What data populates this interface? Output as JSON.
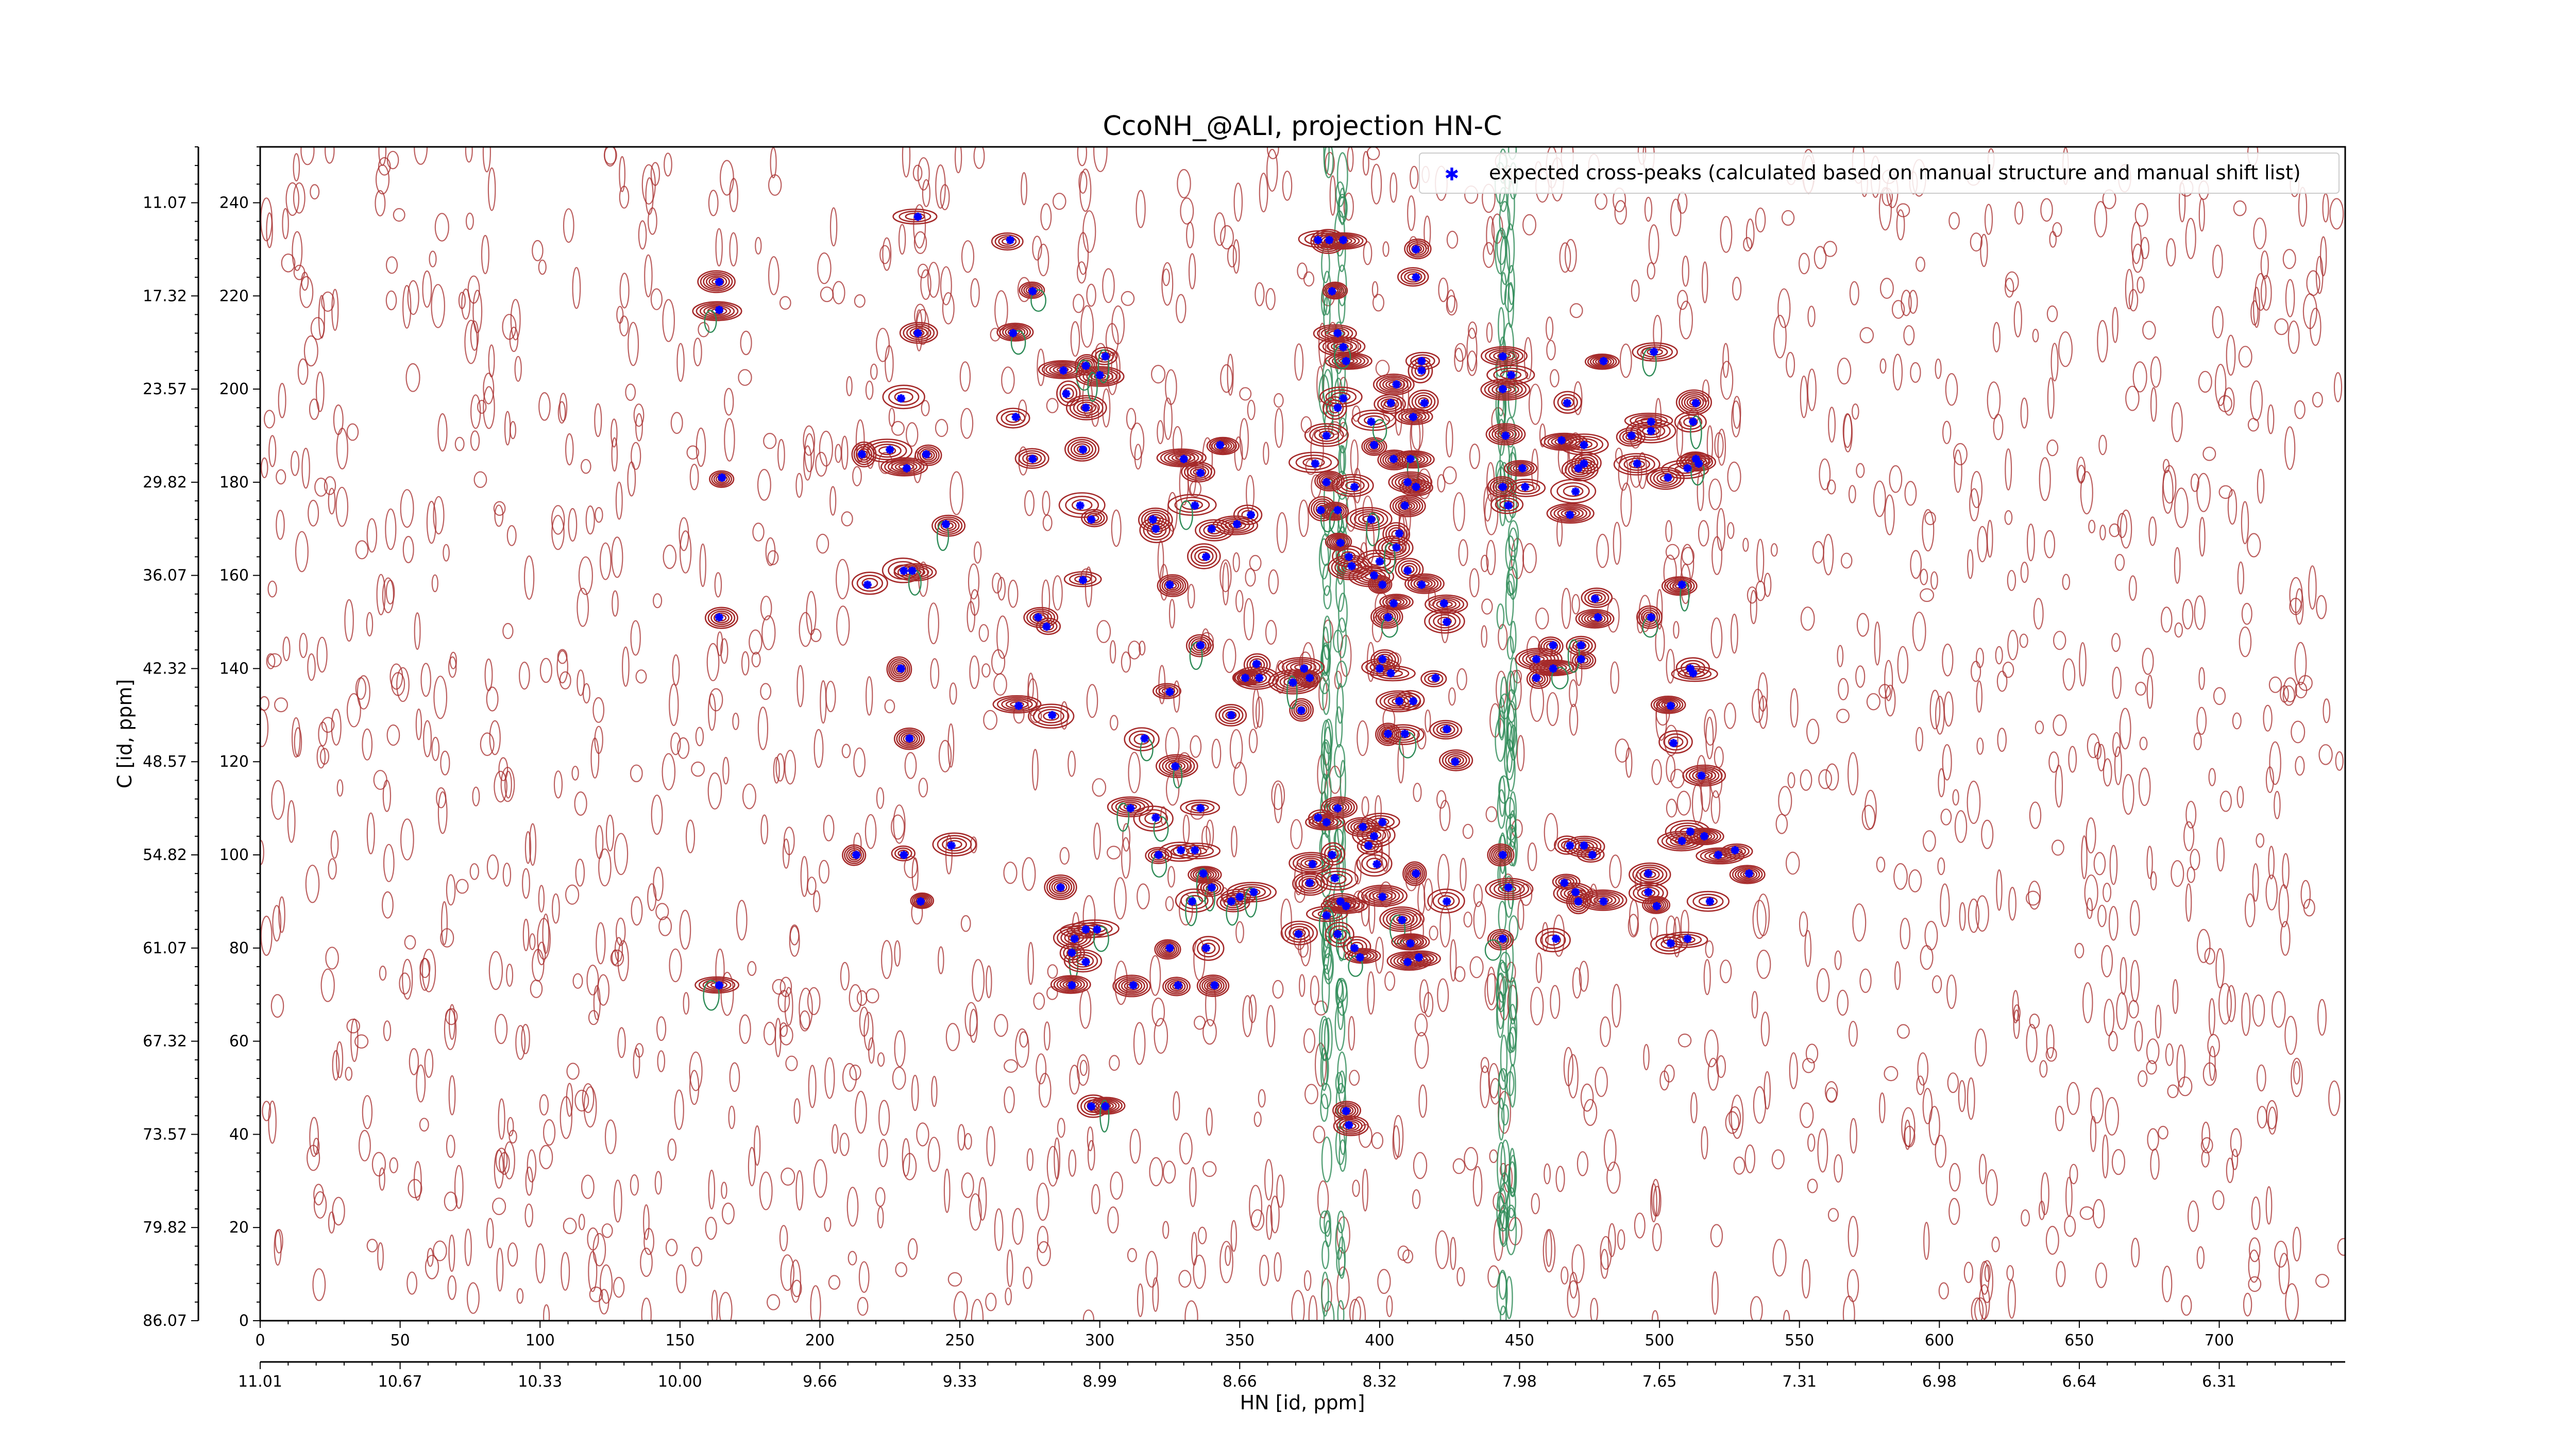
{
  "chart_data": {
    "type": "scatter",
    "title": "CcoNH_@ALI, projection HN-C",
    "xlabel": "HN [id, ppm]",
    "ylabel": "C [id, ppm]",
    "xlim": [
      0,
      745
    ],
    "ylim": [
      0,
      252
    ],
    "x_ticks": [
      0,
      50,
      100,
      150,
      200,
      250,
      300,
      350,
      400,
      450,
      500,
      550,
      600,
      650,
      700
    ],
    "y_ticks": [
      0,
      20,
      40,
      60,
      80,
      100,
      120,
      140,
      160,
      180,
      200,
      220,
      240
    ],
    "x_ppm_tick_labels": [
      "11.01",
      "10.67",
      "10.33",
      "10.00",
      "9.66",
      "9.33",
      "8.99",
      "8.66",
      "8.32",
      "7.98",
      "7.65",
      "7.31",
      "6.98",
      "6.64",
      "6.31"
    ],
    "y_ppm_tick_labels": [
      "86.07",
      "79.82",
      "73.57",
      "67.32",
      "61.07",
      "54.82",
      "48.57",
      "42.32",
      "36.07",
      "29.82",
      "23.57",
      "17.32",
      "11.07"
    ],
    "legend": {
      "label": "expected cross-peaks (calculated based on manual structure and manual shift list)",
      "placement": "top-right"
    },
    "colors": {
      "marker": "#0000ff",
      "positive_contour": "#a52a2a",
      "negative_contour": "#2e8b57"
    },
    "series": [
      {
        "name": "expected cross-peaks (calculated based on manual structure and manual shift list)",
        "points": [
          [
            164,
            223
          ],
          [
            164,
            217
          ],
          [
            165,
            181
          ],
          [
            164,
            151
          ],
          [
            164,
            72
          ],
          [
            235,
            237
          ],
          [
            235,
            212
          ],
          [
            229,
            198
          ],
          [
            231,
            183
          ],
          [
            238,
            186
          ],
          [
            225,
            187
          ],
          [
            230,
            161
          ],
          [
            233,
            161
          ],
          [
            245,
            171
          ],
          [
            229,
            140
          ],
          [
            232,
            125
          ],
          [
            217,
            158
          ],
          [
            215,
            186
          ],
          [
            213,
            100
          ],
          [
            230,
            100
          ],
          [
            236,
            90
          ],
          [
            247,
            102
          ],
          [
            268,
            232
          ],
          [
            269,
            212
          ],
          [
            276,
            221
          ],
          [
            270,
            194
          ],
          [
            276,
            185
          ],
          [
            283,
            130
          ],
          [
            271,
            132
          ],
          [
            281,
            149
          ],
          [
            278,
            151
          ],
          [
            294,
            187
          ],
          [
            295,
            196
          ],
          [
            297,
            172
          ],
          [
            293,
            175
          ],
          [
            294,
            159
          ],
          [
            288,
            199
          ],
          [
            287,
            204
          ],
          [
            295,
            205
          ],
          [
            300,
            203
          ],
          [
            302,
            207
          ],
          [
            286,
            93
          ],
          [
            290,
            79
          ],
          [
            291,
            82
          ],
          [
            295,
            84
          ],
          [
            299,
            84
          ],
          [
            295,
            77
          ],
          [
            290,
            72
          ],
          [
            297,
            46
          ],
          [
            302,
            46
          ],
          [
            316,
            125
          ],
          [
            311,
            110
          ],
          [
            320,
            108
          ],
          [
            327,
            119
          ],
          [
            336,
            110
          ],
          [
            336,
            145
          ],
          [
            325,
            135
          ],
          [
            320,
            170
          ],
          [
            319,
            172
          ],
          [
            330,
            185
          ],
          [
            336,
            182
          ],
          [
            343,
            188
          ],
          [
            334,
            175
          ],
          [
            340,
            170
          ],
          [
            338,
            164
          ],
          [
            325,
            158
          ],
          [
            321,
            100
          ],
          [
            329,
            101
          ],
          [
            334,
            101
          ],
          [
            337,
            96
          ],
          [
            340,
            93
          ],
          [
            338,
            80
          ],
          [
            341,
            72
          ],
          [
            325,
            80
          ],
          [
            328,
            72
          ],
          [
            312,
            72
          ],
          [
            333,
            90
          ],
          [
            347,
            90
          ],
          [
            350,
            91
          ],
          [
            355,
            92
          ],
          [
            347,
            130
          ],
          [
            356,
            141
          ],
          [
            352,
            138
          ],
          [
            357,
            138
          ],
          [
            349,
            171
          ],
          [
            354,
            173
          ],
          [
            373,
            140
          ],
          [
            372,
            131
          ],
          [
            369,
            137
          ],
          [
            375,
            138
          ],
          [
            381,
            180
          ],
          [
            379,
            174
          ],
          [
            377,
            184
          ],
          [
            381,
            190
          ],
          [
            385,
            196
          ],
          [
            387,
            198
          ],
          [
            388,
            206
          ],
          [
            387,
            209
          ],
          [
            385,
            212
          ],
          [
            383,
            221
          ],
          [
            382,
            232
          ],
          [
            387,
            232
          ],
          [
            378,
            232
          ],
          [
            385,
            174
          ],
          [
            391,
            179
          ],
          [
            386,
            167
          ],
          [
            389,
            164
          ],
          [
            390,
            162
          ],
          [
            397,
            172
          ],
          [
            400,
            163
          ],
          [
            398,
            160
          ],
          [
            403,
            151
          ],
          [
            401,
            142
          ],
          [
            407,
            133
          ],
          [
            409,
            126
          ],
          [
            403,
            126
          ],
          [
            400,
            140
          ],
          [
            404,
            139
          ],
          [
            405,
            154
          ],
          [
            401,
            158
          ],
          [
            405,
            185
          ],
          [
            398,
            188
          ],
          [
            397,
            193
          ],
          [
            404,
            197
          ],
          [
            406,
            201
          ],
          [
            415,
            204
          ],
          [
            415,
            206
          ],
          [
            416,
            197
          ],
          [
            412,
            194
          ],
          [
            411,
            185
          ],
          [
            410,
            180
          ],
          [
            413,
            179
          ],
          [
            409,
            175
          ],
          [
            407,
            169
          ],
          [
            406,
            166
          ],
          [
            410,
            161
          ],
          [
            415,
            158
          ],
          [
            423,
            154
          ],
          [
            424,
            150
          ],
          [
            420,
            138
          ],
          [
            412,
            133
          ],
          [
            413,
            224
          ],
          [
            413,
            230
          ],
          [
            383,
            100
          ],
          [
            384,
            95
          ],
          [
            386,
            90
          ],
          [
            388,
            89
          ],
          [
            381,
            87
          ],
          [
            385,
            83
          ],
          [
            391,
            80
          ],
          [
            393,
            78
          ],
          [
            381,
            107
          ],
          [
            385,
            110
          ],
          [
            396,
            102
          ],
          [
            398,
            104
          ],
          [
            394,
            106
          ],
          [
            378,
            108
          ],
          [
            401,
            107
          ],
          [
            399,
            98
          ],
          [
            401,
            91
          ],
          [
            413,
            96
          ],
          [
            408,
            86
          ],
          [
            411,
            81
          ],
          [
            410,
            77
          ],
          [
            376,
            98
          ],
          [
            375,
            94
          ],
          [
            371,
            83
          ],
          [
            388,
            45
          ],
          [
            389,
            42
          ],
          [
            414,
            78
          ],
          [
            424,
            90
          ],
          [
            427,
            120
          ],
          [
            424,
            127
          ],
          [
            444,
            100
          ],
          [
            446,
            93
          ],
          [
            444,
            82
          ],
          [
            445,
            190
          ],
          [
            444,
            207
          ],
          [
            444,
            200
          ],
          [
            447,
            203
          ],
          [
            444,
            179
          ],
          [
            446,
            175
          ],
          [
            451,
            183
          ],
          [
            452,
            179
          ],
          [
            456,
            142
          ],
          [
            456,
            138
          ],
          [
            462,
            145
          ],
          [
            462,
            140
          ],
          [
            463,
            82
          ],
          [
            473,
            102
          ],
          [
            468,
            102
          ],
          [
            466,
            94
          ],
          [
            470,
            92
          ],
          [
            471,
            90
          ],
          [
            476,
            100
          ],
          [
            480,
            90
          ],
          [
            472,
            142
          ],
          [
            472,
            145
          ],
          [
            478,
            151
          ],
          [
            477,
            155
          ],
          [
            468,
            173
          ],
          [
            470,
            178
          ],
          [
            471,
            183
          ],
          [
            473,
            184
          ],
          [
            473,
            188
          ],
          [
            465,
            189
          ],
          [
            467,
            197
          ],
          [
            480,
            206
          ],
          [
            490,
            190
          ],
          [
            492,
            184
          ],
          [
            497,
            191
          ],
          [
            497,
            193
          ],
          [
            498,
            208
          ],
          [
            503,
            181
          ],
          [
            510,
            183
          ],
          [
            513,
            197
          ],
          [
            514,
            184
          ],
          [
            512,
            193
          ],
          [
            513,
            185
          ],
          [
            497,
            151
          ],
          [
            508,
            158
          ],
          [
            512,
            139
          ],
          [
            511,
            140
          ],
          [
            505,
            124
          ],
          [
            504,
            132
          ],
          [
            515,
            117
          ],
          [
            511,
            105
          ],
          [
            516,
            104
          ],
          [
            521,
            100
          ],
          [
            527,
            101
          ],
          [
            532,
            96
          ],
          [
            518,
            90
          ],
          [
            510,
            82
          ],
          [
            504,
            81
          ],
          [
            508,
            103
          ],
          [
            496,
            92
          ],
          [
            496,
            96
          ],
          [
            499,
            89
          ]
        ]
      }
    ]
  }
}
